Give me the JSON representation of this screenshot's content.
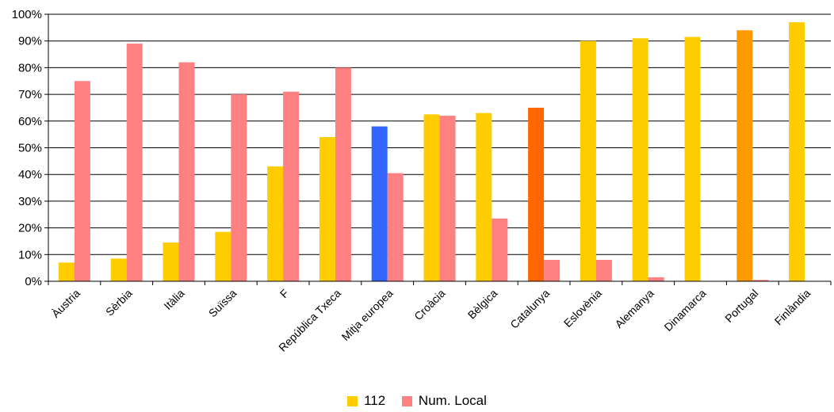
{
  "chart_data": {
    "type": "bar",
    "title": "",
    "xlabel": "",
    "ylabel": "",
    "ylim": [
      0,
      100
    ],
    "y_ticks": [
      "0%",
      "10%",
      "20%",
      "30%",
      "40%",
      "50%",
      "60%",
      "70%",
      "80%",
      "90%",
      "100%"
    ],
    "grid": true,
    "legend_position": "bottom",
    "categories": [
      "Àustria",
      "Sèrbia",
      "Itàlia",
      "Suïssa",
      "F",
      "República Txeca",
      "Mitja europea",
      "Croàcia",
      "Bèlgica",
      "Catalunya",
      "Eslovènia",
      "Alemanya",
      "Dinamarca",
      "Portugal",
      "Finlàndia"
    ],
    "series": [
      {
        "name": "112",
        "color": "#FFCC00",
        "values": [
          7,
          8.5,
          14.5,
          18.5,
          43,
          54,
          58,
          62.5,
          63,
          65,
          90,
          91,
          91.5,
          94,
          97
        ]
      },
      {
        "name": "Num. Local",
        "color": "#FF8080",
        "values": [
          75,
          89,
          82,
          70,
          71,
          80,
          40.5,
          62,
          23.5,
          8,
          8,
          1.5,
          0,
          0.5,
          0
        ]
      }
    ],
    "highlight_colors": {
      "Mitja europea": "#3366FF",
      "Catalunya": "#FF6600",
      "Portugal": "#FF9900"
    }
  },
  "legend": {
    "s1": "112",
    "s2": "Num. Local"
  },
  "colors": {
    "s1": "#FFCC00",
    "s2": "#FF8080",
    "axis": "#000000",
    "grid": "#000000"
  }
}
